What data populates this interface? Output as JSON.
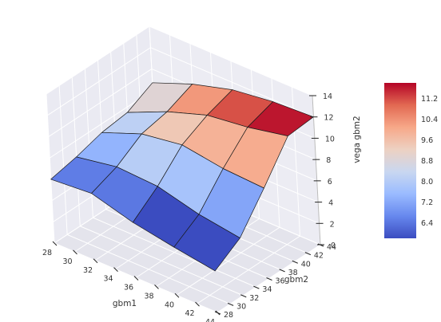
{
  "chart_data": {
    "type": "surface",
    "xlabel": "gbm1",
    "ylabel": "gbm2",
    "zlabel": "vega gbm2",
    "x": [
      28,
      32,
      36,
      40,
      44
    ],
    "y": [
      28,
      32,
      36,
      40,
      44
    ],
    "z": [
      [
        6.0,
        6.5,
        7.2,
        7.5,
        8.7
      ],
      [
        6.3,
        7.2,
        8.7,
        9.2,
        10.2
      ],
      [
        5.2,
        7.0,
        9.3,
        10.5,
        11.3
      ],
      [
        4.5,
        6.0,
        8.7,
        11.0,
        11.8
      ],
      [
        3.9,
        5.4,
        8.5,
        11.8,
        12.0
      ]
    ],
    "xlim": [
      28,
      44
    ],
    "ylim": [
      28,
      44
    ],
    "zlim": [
      0,
      14
    ],
    "xticks": [
      "28",
      "30",
      "32",
      "34",
      "36",
      "38",
      "40",
      "42",
      "44"
    ],
    "yticks": [
      "28",
      "30",
      "32",
      "34",
      "36",
      "38",
      "40",
      "42",
      "44"
    ],
    "zticks": [
      "0",
      "2",
      "4",
      "6",
      "8",
      "10",
      "12",
      "14"
    ],
    "colorbar": {
      "colormap": "coolwarm",
      "range": [
        5.8,
        11.8
      ],
      "ticks": [
        "6.4",
        "7.2",
        "8.0",
        "8.8",
        "9.6",
        "10.4",
        "11.2"
      ],
      "colors": [
        "#3b4cc0",
        "#6788ee",
        "#9abbff",
        "#c9d7f0",
        "#edd1c2",
        "#f7a889",
        "#e26952",
        "#b40426"
      ]
    },
    "grid": true
  }
}
